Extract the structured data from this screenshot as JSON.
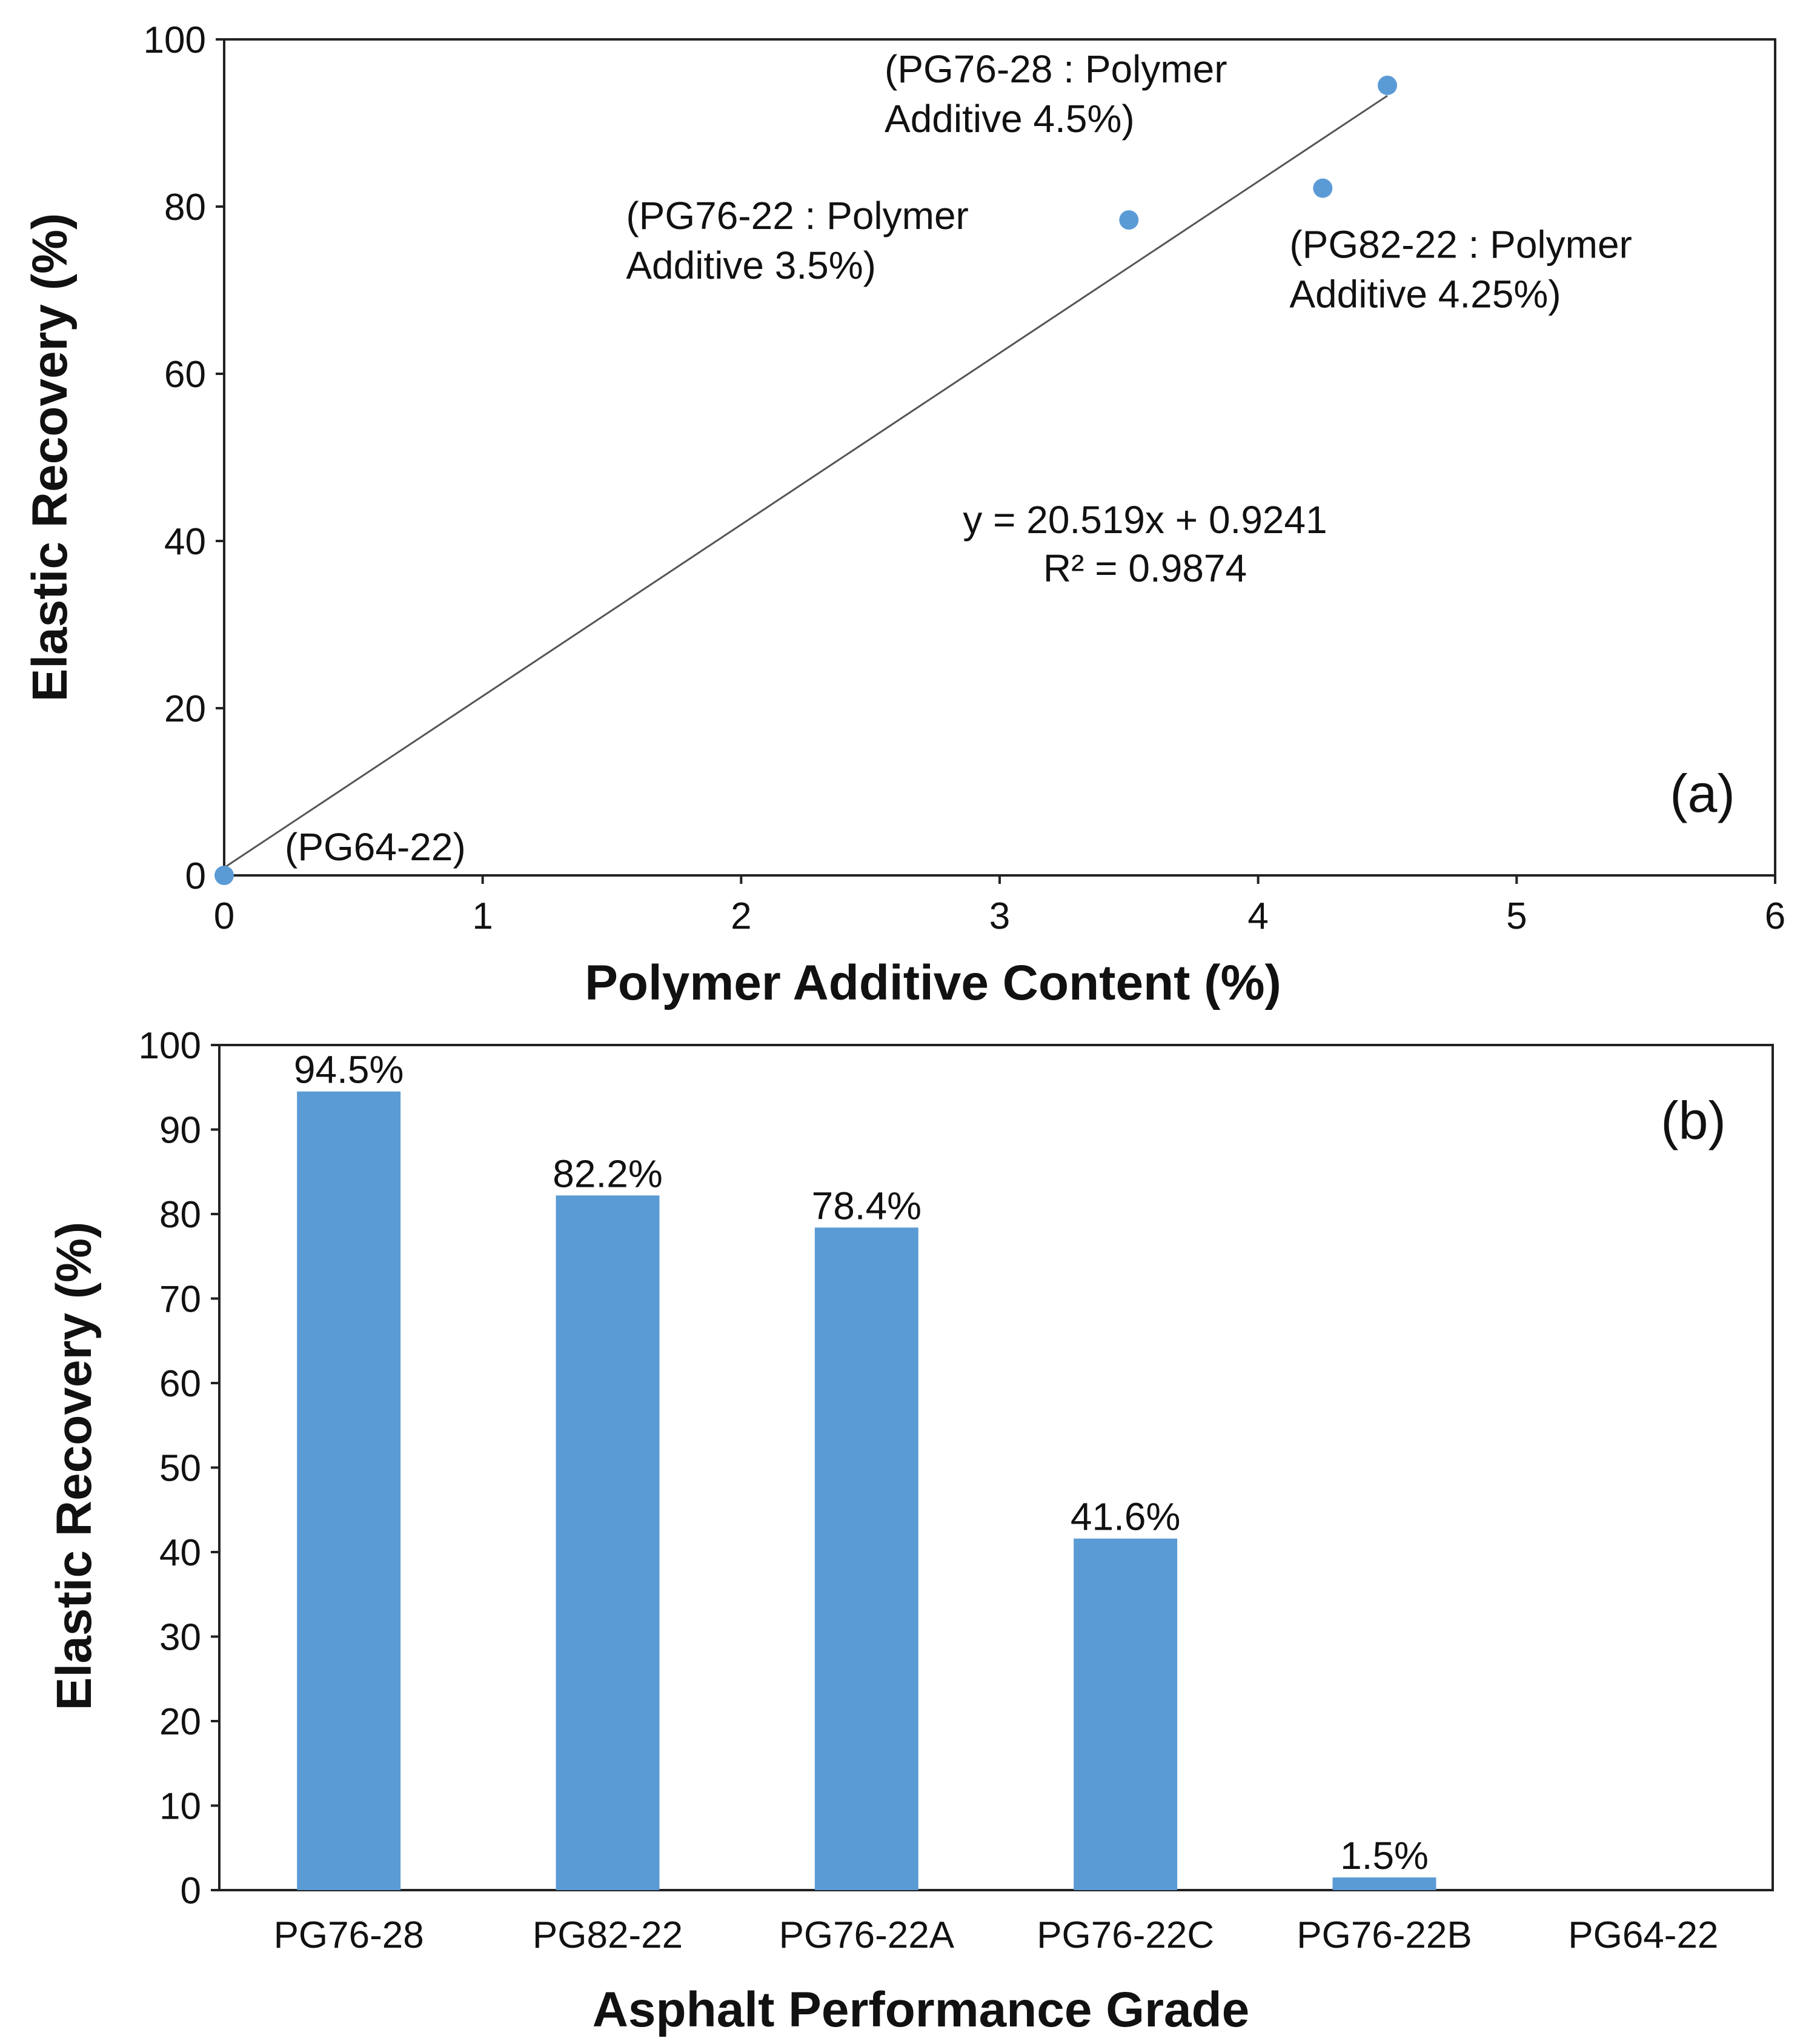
{
  "chart_data": [
    {
      "type": "scatter",
      "panel_label": "(a)",
      "xlabel": "Polymer Additive Content (%)",
      "ylabel": "Elastic Recovery (%)",
      "xlim": [
        0,
        6
      ],
      "ylim": [
        0,
        100
      ],
      "xticks": [
        "0",
        "1",
        "2",
        "3",
        "4",
        "5",
        "6"
      ],
      "yticks": [
        "0",
        "20",
        "40",
        "60",
        "80",
        "100"
      ],
      "grid": false,
      "points": [
        {
          "x": 0,
          "y": 0,
          "label": [
            "(PG64-22)"
          ]
        },
        {
          "x": 3.5,
          "y": 78.4,
          "label": [
            "(PG76-22 : Polymer",
            "Additive 3.5%)"
          ]
        },
        {
          "x": 4.25,
          "y": 82.2,
          "label": [
            "(PG82-22 : Polymer",
            "Additive 4.25%)"
          ]
        },
        {
          "x": 4.5,
          "y": 94.5,
          "label": [
            "(PG76-28 : Polymer",
            "Additive 4.5%)"
          ]
        }
      ],
      "trendline": {
        "slope": 20.519,
        "intercept": 0.9241,
        "x_range": [
          0,
          4.5
        ],
        "equation": "y = 20.519x + 0.9241",
        "r2": "R² = 0.9874"
      },
      "marker_color": "#5b9bd5",
      "line_color": "#555555"
    },
    {
      "type": "bar",
      "panel_label": "(b)",
      "xlabel": "Asphalt Performance Grade",
      "ylabel": "Elastic Recovery (%)",
      "ylim": [
        0,
        100
      ],
      "yticks": [
        "0",
        "10",
        "20",
        "30",
        "40",
        "50",
        "60",
        "70",
        "80",
        "90",
        "100"
      ],
      "grid": false,
      "categories": [
        "PG76-28",
        "PG82-22",
        "PG76-22A",
        "PG76-22C",
        "PG76-22B",
        "PG64-22"
      ],
      "values": [
        94.5,
        82.2,
        78.4,
        41.6,
        1.5,
        0
      ],
      "data_labels": [
        "94.5%",
        "82.2%",
        "78.4%",
        "41.6%",
        "1.5%",
        ""
      ],
      "bar_color": "#5b9bd5"
    }
  ]
}
